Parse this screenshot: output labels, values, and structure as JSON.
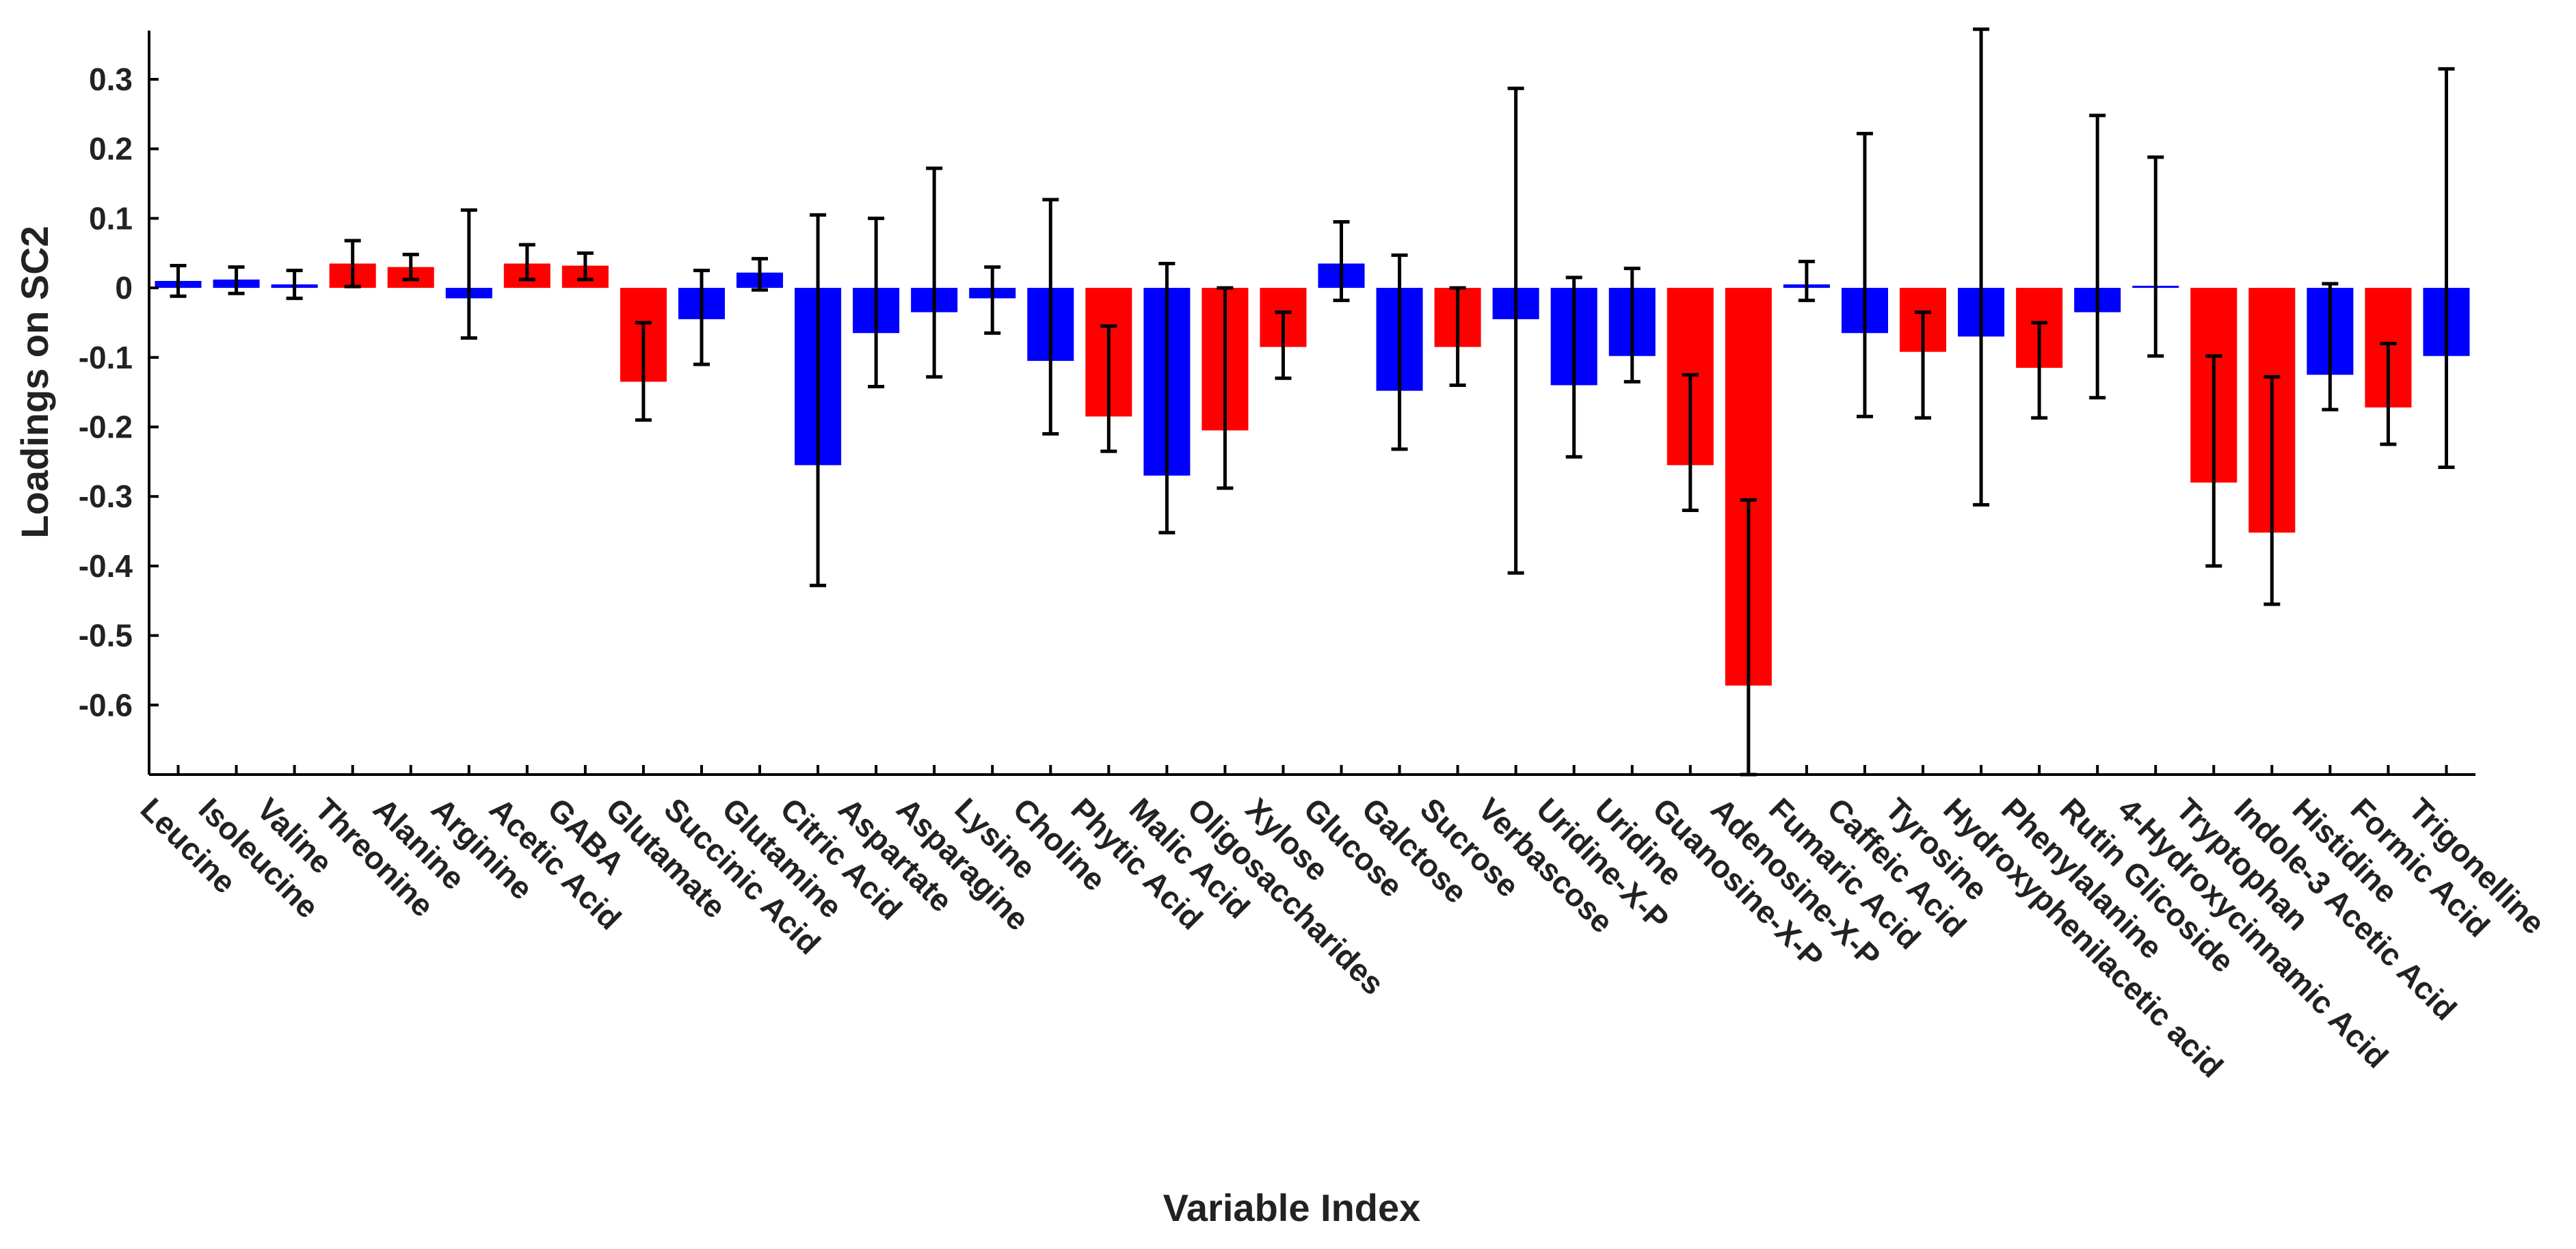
{
  "chart_data": {
    "type": "bar",
    "xlabel": "Variable Index",
    "ylabel": "Loadings on SC2",
    "ylim": [
      -0.7,
      0.37
    ],
    "yticks": [
      0.3,
      0.2,
      0.1,
      0,
      -0.1,
      -0.2,
      -0.3,
      -0.4,
      -0.5,
      -0.6
    ],
    "ytick_labels": [
      "0.3",
      "0.2",
      "0.1",
      "0",
      "-0.1",
      "-0.2",
      "-0.3",
      "-0.4",
      "-0.5",
      "-0.6"
    ],
    "colors": {
      "red": "#ff0000",
      "blue": "#0000ff",
      "error": "#000000"
    },
    "categories": [
      "Leucine",
      "Isoleucine",
      "Valine",
      "Threonine",
      "Alanine",
      "Arginine",
      "Acetic Acid",
      "GABA",
      "Glutamate",
      "Succinic Acid",
      "Glutamine",
      "Citric Acid",
      "Aspartate",
      "Asparagine",
      "Lysine",
      "Choline",
      "Phytic Acid",
      "Malic Acid",
      "Oligosaccharides",
      "Xylose",
      "Glucose",
      "Galctose",
      "Sucrose",
      "Verbascose",
      "Uridine-X-P",
      "Uridine",
      "Guanosine-X-P",
      "Adenosine-X-P",
      "Fumaric Acid",
      "Caffeic Acid",
      "Tyrosine",
      "Hydroxyphenilacetic acid",
      "Phenylalanine",
      "Rutin Glicoside",
      "4-Hydroxycinnamic Acid",
      "Tryptophan",
      "Indole-3 Acetic Acid",
      "Histidine",
      "Formic Acid",
      "Trigonelline"
    ],
    "values": [
      0.01,
      0.012,
      0.005,
      0.035,
      0.03,
      -0.015,
      0.035,
      0.032,
      -0.135,
      -0.045,
      0.022,
      -0.255,
      -0.065,
      -0.035,
      -0.015,
      -0.105,
      -0.185,
      -0.27,
      -0.205,
      -0.085,
      0.035,
      -0.148,
      -0.085,
      -0.045,
      -0.14,
      -0.098,
      -0.255,
      -0.572,
      0.005,
      -0.065,
      -0.092,
      -0.07,
      -0.115,
      -0.035,
      0.003,
      -0.28,
      -0.352,
      -0.125,
      -0.172,
      -0.098
    ],
    "error_low": [
      -0.012,
      -0.008,
      -0.015,
      0.002,
      0.012,
      -0.072,
      0.012,
      0.012,
      -0.19,
      -0.11,
      -0.003,
      -0.428,
      -0.142,
      -0.128,
      -0.065,
      -0.21,
      -0.235,
      -0.352,
      -0.288,
      -0.13,
      -0.018,
      -0.232,
      -0.14,
      -0.41,
      -0.243,
      -0.135,
      -0.32,
      -0.7,
      -0.018,
      -0.185,
      -0.187,
      -0.312,
      -0.187,
      -0.158,
      -0.098,
      -0.4,
      -0.455,
      -0.175,
      -0.225,
      -0.258
    ],
    "error_high": [
      0.032,
      0.03,
      0.025,
      0.068,
      0.048,
      0.112,
      0.062,
      0.05,
      -0.05,
      0.025,
      0.042,
      0.105,
      0.1,
      0.172,
      0.03,
      0.127,
      -0.055,
      0.035,
      0.0,
      -0.035,
      0.095,
      0.047,
      0.0,
      0.287,
      0.015,
      0.028,
      -0.125,
      -0.305,
      0.038,
      0.222,
      -0.035,
      0.372,
      -0.05,
      0.248,
      0.188,
      -0.098,
      -0.128,
      0.006,
      -0.08,
      0.315
    ],
    "bar_colors": [
      "blue",
      "blue",
      "blue",
      "red",
      "red",
      "blue",
      "red",
      "red",
      "red",
      "blue",
      "blue",
      "blue",
      "blue",
      "blue",
      "blue",
      "blue",
      "red",
      "blue",
      "red",
      "red",
      "blue",
      "blue",
      "red",
      "blue",
      "blue",
      "blue",
      "red",
      "red",
      "blue",
      "blue",
      "red",
      "blue",
      "red",
      "blue",
      "blue",
      "red",
      "red",
      "blue",
      "red",
      "blue"
    ],
    "grid": false,
    "legend": "none"
  }
}
